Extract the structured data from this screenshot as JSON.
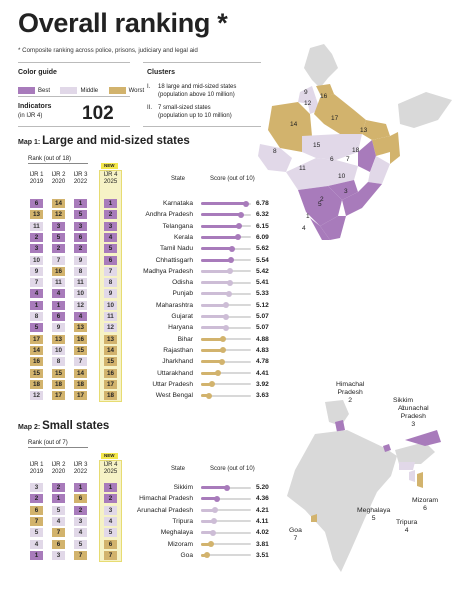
{
  "title": "Overall ranking *",
  "subtitle": "* Composite ranking across police, prisons, judiciary and legal aid",
  "color_guide": {
    "heading": "Color guide",
    "items": [
      {
        "label": "Best",
        "color": "#a87bbb"
      },
      {
        "label": "Middle",
        "color": "#e1d8e8"
      },
      {
        "label": "Worst",
        "color": "#d2b36d"
      }
    ]
  },
  "indicators": {
    "label": "Indicators",
    "sublabel": "(in IJR 4)",
    "value": "102"
  },
  "clusters": {
    "heading": "Clusters",
    "items": [
      {
        "num": "I.",
        "text": "18 large and mid-sized states",
        "sub": "(population above 10 million)"
      },
      {
        "num": "II.",
        "text": "7 small-sized states",
        "sub": "(population up to 10 million)"
      }
    ]
  },
  "map1": {
    "label": "Map 1:",
    "title": "Large and mid-sized states",
    "rank_note": "Rank (out of 18)",
    "col_ijr": [
      "IJR 1",
      "IJR 2",
      "IJR 3",
      "IJR 4"
    ],
    "col_years": [
      "2019",
      "2020",
      "2022",
      "2025"
    ],
    "new_label": "NEW",
    "state_header": "State",
    "score_header": "Score (out of 10)",
    "rows": [
      {
        "r": [
          "6",
          "14",
          "1",
          "1"
        ],
        "c": [
          "b",
          "w",
          "b",
          "b"
        ],
        "state": "Karnataka",
        "score": "6.78"
      },
      {
        "r": [
          "13",
          "12",
          "5",
          "2"
        ],
        "c": [
          "w",
          "w",
          "b",
          "b"
        ],
        "state": "Andhra Pradesh",
        "score": "6.32"
      },
      {
        "r": [
          "11",
          "3",
          "3",
          "3"
        ],
        "c": [
          "m",
          "b",
          "b",
          "b"
        ],
        "state": "Telangana",
        "score": "6.15"
      },
      {
        "r": [
          "2",
          "5",
          "6",
          "4"
        ],
        "c": [
          "b",
          "b",
          "b",
          "b"
        ],
        "state": "Kerala",
        "score": "6.09"
      },
      {
        "r": [
          "3",
          "2",
          "2",
          "5"
        ],
        "c": [
          "b",
          "b",
          "b",
          "b"
        ],
        "state": "Tamil Nadu",
        "score": "5.62"
      },
      {
        "r": [
          "10",
          "7",
          "9",
          "6"
        ],
        "c": [
          "m",
          "m",
          "m",
          "b"
        ],
        "state": "Chhattisgarh",
        "score": "5.54"
      },
      {
        "r": [
          "9",
          "16",
          "8",
          "7"
        ],
        "c": [
          "m",
          "w",
          "m",
          "m"
        ],
        "state": "Madhya Pradesh",
        "score": "5.42"
      },
      {
        "r": [
          "7",
          "11",
          "11",
          "8"
        ],
        "c": [
          "m",
          "m",
          "m",
          "m"
        ],
        "state": "Odisha",
        "score": "5.41"
      },
      {
        "r": [
          "4",
          "4",
          "10",
          "9"
        ],
        "c": [
          "b",
          "b",
          "m",
          "m"
        ],
        "state": "Punjab",
        "score": "5.33"
      },
      {
        "r": [
          "1",
          "1",
          "12",
          "10"
        ],
        "c": [
          "b",
          "b",
          "m",
          "m"
        ],
        "state": "Maharashtra",
        "score": "5.12"
      },
      {
        "r": [
          "8",
          "6",
          "4",
          "11"
        ],
        "c": [
          "m",
          "b",
          "b",
          "m"
        ],
        "state": "Gujarat",
        "score": "5.07"
      },
      {
        "r": [
          "5",
          "9",
          "13",
          "12"
        ],
        "c": [
          "b",
          "m",
          "w",
          "m"
        ],
        "state": "Haryana",
        "score": "5.07"
      },
      {
        "r": [
          "17",
          "13",
          "16",
          "13"
        ],
        "c": [
          "w",
          "w",
          "w",
          "w"
        ],
        "state": "Bihar",
        "score": "4.88"
      },
      {
        "r": [
          "14",
          "10",
          "15",
          "14"
        ],
        "c": [
          "w",
          "m",
          "w",
          "w"
        ],
        "state": "Rajasthan",
        "score": "4.83"
      },
      {
        "r": [
          "16",
          "8",
          "7",
          "15"
        ],
        "c": [
          "w",
          "m",
          "m",
          "w"
        ],
        "state": "Jharkhand",
        "score": "4.78"
      },
      {
        "r": [
          "15",
          "15",
          "14",
          "16"
        ],
        "c": [
          "w",
          "w",
          "w",
          "w"
        ],
        "state": "Uttarakhand",
        "score": "4.41"
      },
      {
        "r": [
          "18",
          "18",
          "18",
          "17"
        ],
        "c": [
          "w",
          "w",
          "w",
          "w"
        ],
        "state": "Uttar Pradesh",
        "score": "3.92"
      },
      {
        "r": [
          "12",
          "17",
          "17",
          "18"
        ],
        "c": [
          "m",
          "w",
          "w",
          "w"
        ],
        "state": "West Bengal",
        "score": "3.63"
      }
    ],
    "map_numbers": [
      "9",
      "12",
      "16",
      "14",
      "17",
      "13",
      "15",
      "18",
      "7",
      "6",
      "8",
      "11",
      "10",
      "3",
      "2",
      "1",
      "5",
      "4"
    ]
  },
  "map2": {
    "label": "Map 2:",
    "title": "Small states",
    "rank_note": "Rank (out of 7)",
    "col_ijr": [
      "IJR 1",
      "IJR 2",
      "IJR 3",
      "IJR 4"
    ],
    "col_years": [
      "2019",
      "2020",
      "2022",
      "2025"
    ],
    "new_label": "NEW",
    "state_header": "State",
    "score_header": "Score (out of 10)",
    "rows": [
      {
        "r": [
          "3",
          "2",
          "1",
          "1"
        ],
        "c": [
          "m",
          "b",
          "b",
          "b"
        ],
        "state": "Sikkim",
        "score": "5.20"
      },
      {
        "r": [
          "2",
          "1",
          "6",
          "2"
        ],
        "c": [
          "b",
          "b",
          "w",
          "b"
        ],
        "state": "Himachal Pradesh",
        "score": "4.36"
      },
      {
        "r": [
          "6",
          "5",
          "2",
          "3"
        ],
        "c": [
          "w",
          "m",
          "b",
          "m"
        ],
        "state": "Arunachal Pradesh",
        "score": "4.21"
      },
      {
        "r": [
          "7",
          "4",
          "3",
          "4"
        ],
        "c": [
          "w",
          "m",
          "m",
          "m"
        ],
        "state": "Tripura",
        "score": "4.11"
      },
      {
        "r": [
          "5",
          "7",
          "4",
          "5"
        ],
        "c": [
          "m",
          "w",
          "m",
          "m"
        ],
        "state": "Meghalaya",
        "score": "4.02"
      },
      {
        "r": [
          "4",
          "6",
          "5",
          "6"
        ],
        "c": [
          "m",
          "w",
          "m",
          "w"
        ],
        "state": "Mizoram",
        "score": "3.81"
      },
      {
        "r": [
          "1",
          "3",
          "7",
          "7"
        ],
        "c": [
          "b",
          "m",
          "w",
          "w"
        ],
        "state": "Goa",
        "score": "3.51"
      }
    ],
    "map_labels": [
      {
        "name": "Himachal\nPradesh",
        "num": "2"
      },
      {
        "name": "Sikkim",
        "num": "1"
      },
      {
        "name": "Arunachal\nPradesh",
        "num": "3"
      },
      {
        "name": "Mizoram",
        "num": "6"
      },
      {
        "name": "Meghalaya",
        "num": "5"
      },
      {
        "name": "Tripura",
        "num": "4"
      },
      {
        "name": "Goa",
        "num": "7"
      }
    ]
  }
}
